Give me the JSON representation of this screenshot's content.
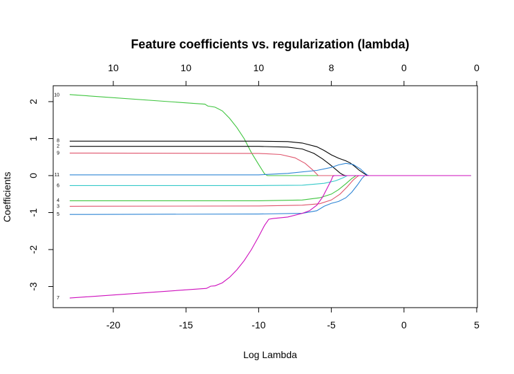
{
  "chart_data": {
    "type": "line",
    "title": "Feature coefficients vs. regularization (lambda)",
    "xlabel": "Log Lambda",
    "ylabel": "Coefficients",
    "xlim": [
      -24.2,
      5.0
    ],
    "ylim": [
      -3.6,
      2.45
    ],
    "x_ticks": [
      -20,
      -15,
      -10,
      -5,
      0,
      5
    ],
    "y_ticks": [
      -3,
      -2,
      -1,
      0,
      1,
      2
    ],
    "top_axis_ticks": [
      {
        "x": -20,
        "label": "10"
      },
      {
        "x": -15,
        "label": "10"
      },
      {
        "x": -10,
        "label": "10"
      },
      {
        "x": -5,
        "label": "8"
      },
      {
        "x": 0,
        "label": "0"
      },
      {
        "x": 5,
        "label": "0"
      }
    ],
    "grid": false,
    "series": [
      {
        "name": "10",
        "color": "#3cc43c",
        "points": [
          [
            -23.0,
            2.19
          ],
          [
            -13.7,
            1.93
          ],
          [
            -13.5,
            1.88
          ],
          [
            -13.0,
            1.85
          ],
          [
            -12.5,
            1.75
          ],
          [
            -12.0,
            1.55
          ],
          [
            -11.5,
            1.3
          ],
          [
            -11.0,
            1.0
          ],
          [
            -10.5,
            0.62
          ],
          [
            -10.0,
            0.3
          ],
          [
            -9.6,
            0.05
          ],
          [
            -9.4,
            0.0
          ],
          [
            -7.0,
            0.0
          ],
          [
            4.6,
            0.0
          ]
        ]
      },
      {
        "name": "8",
        "color": "#000000",
        "points": [
          [
            -23.0,
            0.93
          ],
          [
            -10.0,
            0.93
          ],
          [
            -8.0,
            0.92
          ],
          [
            -7.0,
            0.88
          ],
          [
            -6.0,
            0.78
          ],
          [
            -5.5,
            0.68
          ],
          [
            -5.0,
            0.56
          ],
          [
            -4.5,
            0.47
          ],
          [
            -4.0,
            0.4
          ],
          [
            -3.7,
            0.34
          ],
          [
            -3.4,
            0.25
          ],
          [
            -3.1,
            0.15
          ],
          [
            -2.8,
            0.07
          ],
          [
            -2.6,
            0.02
          ],
          [
            -2.5,
            0.0
          ],
          [
            4.6,
            0.0
          ]
        ]
      },
      {
        "name": "2",
        "color": "#000000",
        "points": [
          [
            -23.0,
            0.79
          ],
          [
            -10.0,
            0.79
          ],
          [
            -8.0,
            0.77
          ],
          [
            -7.0,
            0.72
          ],
          [
            -6.2,
            0.6
          ],
          [
            -5.6,
            0.45
          ],
          [
            -5.1,
            0.3
          ],
          [
            -4.7,
            0.17
          ],
          [
            -4.4,
            0.07
          ],
          [
            -4.2,
            0.02
          ],
          [
            -4.0,
            0.0
          ],
          [
            4.6,
            0.0
          ]
        ]
      },
      {
        "name": "9",
        "color": "#df536b",
        "points": [
          [
            -23.0,
            0.61
          ],
          [
            -10.0,
            0.6
          ],
          [
            -8.5,
            0.57
          ],
          [
            -7.5,
            0.48
          ],
          [
            -6.8,
            0.33
          ],
          [
            -6.3,
            0.16
          ],
          [
            -6.0,
            0.04
          ],
          [
            -5.9,
            0.0
          ],
          [
            4.6,
            0.0
          ]
        ]
      },
      {
        "name": "11",
        "color": "#2b83d4",
        "points": [
          [
            -23.0,
            0.02
          ],
          [
            -10.0,
            0.02
          ],
          [
            -8.0,
            0.06
          ],
          [
            -6.0,
            0.14
          ],
          [
            -5.0,
            0.22
          ],
          [
            -4.5,
            0.29
          ],
          [
            -4.0,
            0.33
          ],
          [
            -3.5,
            0.3
          ],
          [
            -3.0,
            0.18
          ],
          [
            -2.7,
            0.07
          ],
          [
            -2.5,
            0.01
          ],
          [
            -2.4,
            0.0
          ],
          [
            4.6,
            0.0
          ]
        ]
      },
      {
        "name": "6",
        "color": "#32c8c8",
        "points": [
          [
            -23.0,
            -0.27
          ],
          [
            -10.0,
            -0.27
          ],
          [
            -7.0,
            -0.26
          ],
          [
            -5.5,
            -0.21
          ],
          [
            -4.7,
            -0.14
          ],
          [
            -4.2,
            -0.06
          ],
          [
            -4.0,
            -0.02
          ],
          [
            -3.9,
            0.0
          ],
          [
            4.6,
            0.0
          ]
        ]
      },
      {
        "name": "4",
        "color": "#3cc43c",
        "points": [
          [
            -23.0,
            -0.68
          ],
          [
            -10.0,
            -0.68
          ],
          [
            -7.0,
            -0.66
          ],
          [
            -5.8,
            -0.6
          ],
          [
            -5.0,
            -0.5
          ],
          [
            -4.5,
            -0.38
          ],
          [
            -4.0,
            -0.22
          ],
          [
            -3.6,
            -0.08
          ],
          [
            -3.3,
            0.0
          ],
          [
            4.6,
            0.0
          ]
        ]
      },
      {
        "name": "3",
        "color": "#df536b",
        "points": [
          [
            -23.0,
            -0.83
          ],
          [
            -10.0,
            -0.82
          ],
          [
            -7.0,
            -0.8
          ],
          [
            -5.8,
            -0.76
          ],
          [
            -5.0,
            -0.66
          ],
          [
            -4.4,
            -0.5
          ],
          [
            -3.9,
            -0.3
          ],
          [
            -3.5,
            -0.12
          ],
          [
            -3.2,
            -0.02
          ],
          [
            -3.1,
            0.0
          ],
          [
            4.6,
            0.0
          ]
        ]
      },
      {
        "name": "5",
        "color": "#2b83d4",
        "points": [
          [
            -23.0,
            -1.05
          ],
          [
            -10.0,
            -1.04
          ],
          [
            -7.0,
            -1.02
          ],
          [
            -6.0,
            -0.95
          ],
          [
            -5.5,
            -0.83
          ],
          [
            -5.0,
            -0.75
          ],
          [
            -4.5,
            -0.7
          ],
          [
            -4.0,
            -0.6
          ],
          [
            -3.6,
            -0.45
          ],
          [
            -3.2,
            -0.25
          ],
          [
            -2.9,
            -0.08
          ],
          [
            -2.7,
            0.0
          ],
          [
            4.6,
            0.0
          ]
        ]
      },
      {
        "name": "7",
        "color": "#cd0bbc",
        "points": [
          [
            -23.0,
            -3.31
          ],
          [
            -13.6,
            -3.05
          ],
          [
            -13.3,
            -2.99
          ],
          [
            -13.0,
            -2.98
          ],
          [
            -12.5,
            -2.9
          ],
          [
            -12.0,
            -2.75
          ],
          [
            -11.5,
            -2.55
          ],
          [
            -11.0,
            -2.3
          ],
          [
            -10.5,
            -2.0
          ],
          [
            -10.0,
            -1.65
          ],
          [
            -9.6,
            -1.35
          ],
          [
            -9.3,
            -1.18
          ],
          [
            -9.0,
            -1.16
          ],
          [
            -8.0,
            -1.12
          ],
          [
            -7.0,
            -1.02
          ],
          [
            -6.5,
            -0.95
          ],
          [
            -6.0,
            -0.8
          ],
          [
            -5.6,
            -0.58
          ],
          [
            -5.3,
            -0.35
          ],
          [
            -5.0,
            -0.12
          ],
          [
            -4.9,
            -0.02
          ],
          [
            -4.8,
            0.0
          ],
          [
            4.6,
            0.0
          ]
        ]
      }
    ],
    "curve_labels": [
      {
        "label": "10",
        "y": 2.19
      },
      {
        "label": "8",
        "y": 0.95
      },
      {
        "label": "2",
        "y": 0.8
      },
      {
        "label": "9",
        "y": 0.62
      },
      {
        "label": "11",
        "y": 0.03
      },
      {
        "label": "6",
        "y": -0.26
      },
      {
        "label": "4",
        "y": -0.66
      },
      {
        "label": "3",
        "y": -0.82
      },
      {
        "label": "5",
        "y": -1.04
      },
      {
        "label": "7",
        "y": -3.3
      }
    ]
  }
}
